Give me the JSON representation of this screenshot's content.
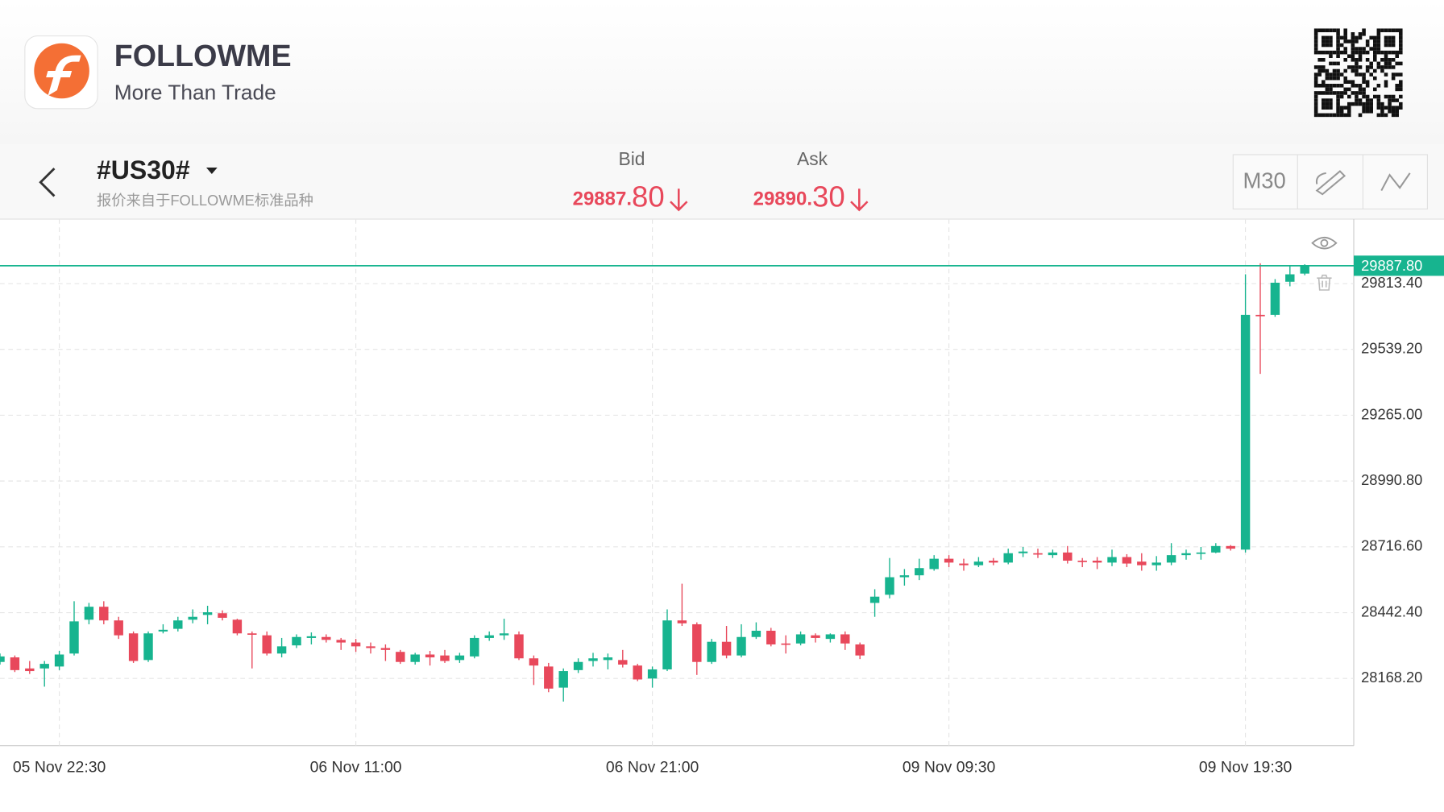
{
  "header": {
    "brand": "FOLLOWME",
    "tagline": "More Than Trade"
  },
  "toolbar": {
    "symbol": "#US30#",
    "source": "报价来自于FOLLOWME标准品种",
    "bid": {
      "label": "Bid",
      "price_main": "29887.",
      "price_pip": "80"
    },
    "ask": {
      "label": "Ask",
      "price_main": "29890.",
      "price_pip": "30"
    },
    "timeframe": "M30"
  },
  "chart_data": {
    "type": "candlestick",
    "categories": [
      null,
      null,
      null,
      null,
      "05 Nov 22:30",
      null,
      null,
      null,
      null,
      null,
      null,
      null,
      null,
      null,
      null,
      null,
      null,
      null,
      null,
      null,
      null,
      null,
      null,
      null,
      "06 Nov 11:00",
      null,
      null,
      null,
      null,
      null,
      null,
      null,
      null,
      null,
      null,
      null,
      null,
      null,
      null,
      null,
      null,
      null,
      null,
      null,
      "06 Nov 21:00",
      null,
      null,
      null,
      null,
      null,
      null,
      null,
      null,
      null,
      null,
      null,
      null,
      null,
      null,
      null,
      null,
      null,
      null,
      null,
      "09 Nov 09:30",
      null,
      null,
      null,
      null,
      null,
      null,
      null,
      null,
      null,
      null,
      null,
      null,
      null,
      null,
      null,
      null,
      null,
      null,
      null,
      "09 Nov 19:30",
      null,
      null,
      null,
      null
    ],
    "open": [
      28237,
      28256,
      28210,
      28210,
      28218,
      28272,
      28413,
      28467,
      28410,
      28356,
      28245,
      28364,
      28375,
      28413,
      28433,
      28440,
      28413,
      28356,
      28348,
      28272,
      28306,
      28337,
      28341,
      28329,
      28318,
      28302,
      28295,
      28279,
      28237,
      28268,
      28264,
      28245,
      28260,
      28337,
      28348,
      28352,
      28252,
      28218,
      28130,
      28203,
      28241,
      28245,
      28245,
      28222,
      28168,
      28206,
      28410,
      28394,
      28237,
      28321,
      28264,
      28341,
      28367,
      28314,
      28314,
      28348,
      28333,
      28352,
      28310,
      28483,
      28517,
      28590,
      28598,
      28624,
      28667,
      28647,
      28640,
      28659,
      28651,
      28690,
      28690,
      28682,
      28693,
      28659,
      28659,
      28651,
      28674,
      28655,
      28640,
      28651,
      28682,
      28690,
      28693,
      28720,
      28705,
      29683,
      29683,
      29821,
      29855
    ],
    "high": [
      28272,
      28264,
      28241,
      28241,
      28283,
      28490,
      28483,
      28490,
      28425,
      28364,
      28364,
      28394,
      28425,
      28456,
      28471,
      28452,
      28417,
      28364,
      28364,
      28337,
      28352,
      28360,
      28352,
      28337,
      28333,
      28318,
      28310,
      28287,
      28275,
      28283,
      28287,
      28275,
      28348,
      28364,
      28417,
      28364,
      28264,
      28233,
      28210,
      28252,
      28275,
      28272,
      28287,
      28229,
      28218,
      28456,
      28563,
      28402,
      28333,
      28387,
      28394,
      28402,
      28379,
      28348,
      28364,
      28356,
      28356,
      28364,
      28318,
      28540,
      28670,
      28624,
      28667,
      28682,
      28682,
      28667,
      28674,
      28670,
      28709,
      28716,
      28709,
      28705,
      28720,
      28670,
      28674,
      28705,
      28686,
      28690,
      28678,
      28732,
      28705,
      28716,
      28732,
      28724,
      29852,
      29898,
      29832,
      29890,
      29894
    ],
    "low": [
      28226,
      28195,
      28187,
      28134,
      28203,
      28264,
      28394,
      28394,
      28333,
      28233,
      28237,
      28356,
      28364,
      28398,
      28394,
      28410,
      28348,
      28210,
      28264,
      28256,
      28295,
      28310,
      28318,
      28287,
      28279,
      28272,
      28241,
      28229,
      28226,
      28222,
      28233,
      28233,
      28252,
      28325,
      28329,
      28245,
      28141,
      28111,
      28072,
      28191,
      28218,
      28206,
      28214,
      28157,
      28130,
      28199,
      28387,
      28183,
      28229,
      28252,
      28256,
      28333,
      28302,
      28272,
      28306,
      28318,
      28318,
      28287,
      28249,
      28425,
      28502,
      28555,
      28578,
      28617,
      28632,
      28617,
      28632,
      28640,
      28644,
      28674,
      28670,
      28670,
      28647,
      28632,
      28624,
      28636,
      28632,
      28617,
      28617,
      28640,
      28663,
      28663,
      28690,
      28701,
      28693,
      29437,
      29675,
      29802,
      29848
    ],
    "close": [
      28260,
      28203,
      28199,
      28229,
      28268,
      28406,
      28467,
      28410,
      28348,
      28241,
      28356,
      28371,
      28410,
      28425,
      28444,
      28421,
      28356,
      28352,
      28272,
      28302,
      28341,
      28344,
      28329,
      28318,
      28302,
      28295,
      28287,
      28237,
      28268,
      28256,
      28241,
      28264,
      28337,
      28348,
      28356,
      28252,
      28222,
      28126,
      28199,
      28237,
      28252,
      28256,
      28226,
      28164,
      28206,
      28410,
      28398,
      28237,
      28321,
      28264,
      28341,
      28367,
      28310,
      28310,
      28352,
      28337,
      28352,
      28314,
      28264,
      28509,
      28590,
      28598,
      28628,
      28667,
      28651,
      28640,
      28655,
      28651,
      28690,
      28697,
      28686,
      28693,
      28659,
      28655,
      28651,
      28674,
      28647,
      28640,
      28651,
      28682,
      28690,
      28693,
      28720,
      28709,
      29683,
      29679,
      29817,
      29852,
      29888
    ],
    "up_color": "#17b48f",
    "down_color": "#e8485b",
    "ylim": [
      27888,
      30082
    ],
    "yticks": [
      {
        "value": 28168.2,
        "label": "28168.20"
      },
      {
        "value": 28442.4,
        "label": "28442.40"
      },
      {
        "value": 28716.6,
        "label": "28716.60"
      },
      {
        "value": 28990.8,
        "label": "28990.80"
      },
      {
        "value": 29265,
        "label": "29265.00"
      },
      {
        "value": 29539.2,
        "label": "29539.20"
      },
      {
        "value": 29813.4,
        "label": "29813.40"
      }
    ],
    "grid": true,
    "last_price": {
      "value": 29887.8,
      "label": "29887.80"
    }
  }
}
